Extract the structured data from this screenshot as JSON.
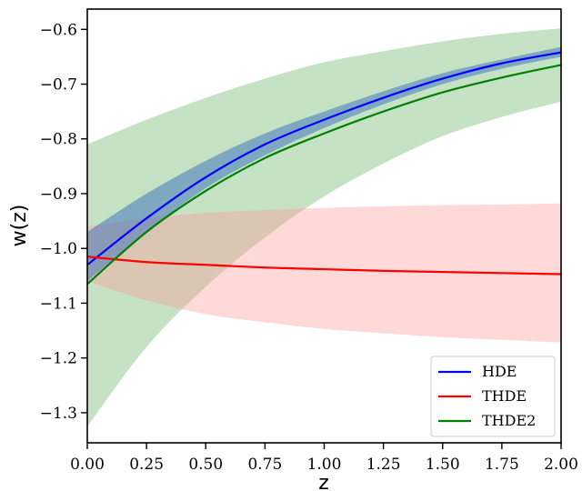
{
  "chart_data": {
    "type": "line",
    "title": "",
    "xlabel": "z",
    "ylabel": "w(z)",
    "xlim": [
      0.0,
      2.0
    ],
    "ylim": [
      -1.355,
      -0.563
    ],
    "x_ticks": [
      0.0,
      0.25,
      0.5,
      0.75,
      1.0,
      1.25,
      1.5,
      1.75,
      2.0
    ],
    "x_tick_labels": [
      "0.00",
      "0.25",
      "0.50",
      "0.75",
      "1.00",
      "1.25",
      "1.50",
      "1.75",
      "2.00"
    ],
    "y_ticks": [
      -0.6,
      -0.7,
      -0.8,
      -0.9,
      -1.0,
      -1.1,
      -1.2,
      -1.3
    ],
    "y_tick_labels": [
      "−0.6",
      "−0.7",
      "−0.8",
      "−0.9",
      "−1.0",
      "−1.1",
      "−1.2",
      "−1.3"
    ],
    "grid": false,
    "legend_position": "bottom-right",
    "x": [
      0.0,
      0.25,
      0.5,
      0.75,
      1.0,
      1.25,
      1.5,
      1.75,
      2.0
    ],
    "series": [
      {
        "name": "HDE",
        "color": "#0000ff",
        "band_color": "#4477bb",
        "y": [
          -1.03,
          -0.945,
          -0.87,
          -0.81,
          -0.765,
          -0.725,
          -0.69,
          -0.662,
          -0.642
        ],
        "upper": [
          -0.97,
          -0.9,
          -0.84,
          -0.79,
          -0.75,
          -0.713,
          -0.68,
          -0.655,
          -0.632
        ],
        "lower": [
          -1.06,
          -0.97,
          -0.89,
          -0.83,
          -0.78,
          -0.737,
          -0.7,
          -0.672,
          -0.65
        ]
      },
      {
        "name": "THDE",
        "color": "#ff0000",
        "band_color": "#ff9999",
        "y": [
          -1.015,
          -1.025,
          -1.03,
          -1.035,
          -1.038,
          -1.041,
          -1.043,
          -1.045,
          -1.047
        ],
        "upper": [
          -0.96,
          -0.945,
          -0.935,
          -0.93,
          -0.926,
          -0.923,
          -0.921,
          -0.92,
          -0.918
        ],
        "lower": [
          -1.06,
          -1.095,
          -1.12,
          -1.135,
          -1.147,
          -1.155,
          -1.162,
          -1.167,
          -1.172
        ]
      },
      {
        "name": "THDE2",
        "color": "#008000",
        "band_color": "#66b266",
        "y": [
          -1.065,
          -0.97,
          -0.895,
          -0.835,
          -0.79,
          -0.75,
          -0.715,
          -0.688,
          -0.665
        ],
        "upper": [
          -0.81,
          -0.765,
          -0.725,
          -0.69,
          -0.66,
          -0.64,
          -0.622,
          -0.608,
          -0.598
        ],
        "lower": [
          -1.325,
          -1.18,
          -1.07,
          -0.98,
          -0.905,
          -0.845,
          -0.795,
          -0.76,
          -0.732
        ]
      }
    ]
  }
}
